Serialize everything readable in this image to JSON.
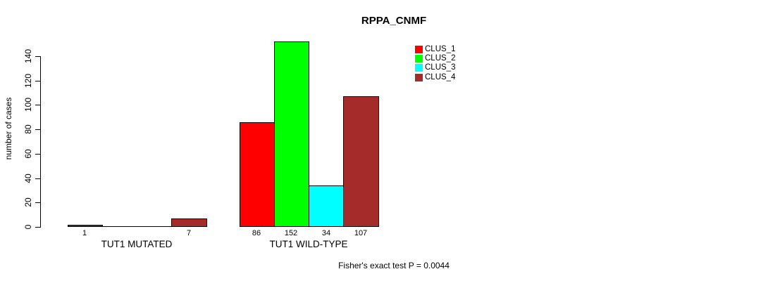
{
  "chart_data": {
    "type": "bar",
    "title": "RPPA_CNMF",
    "ylabel": "number of cases",
    "xlabel": "",
    "ylim": [
      0,
      140
    ],
    "yticks": [
      0,
      20,
      40,
      60,
      80,
      100,
      120,
      140
    ],
    "grid": false,
    "categories": [
      "TUT1 MUTATED",
      "TUT1 WILD-TYPE"
    ],
    "series": [
      {
        "name": "CLUS_1",
        "color": "#ff0000",
        "values": [
          1,
          86
        ]
      },
      {
        "name": "CLUS_2",
        "color": "#00ff00",
        "values": [
          0,
          152
        ]
      },
      {
        "name": "CLUS_3",
        "color": "#00ffff",
        "values": [
          0,
          34
        ]
      },
      {
        "name": "CLUS_4",
        "color": "#a52a2a",
        "values": [
          7,
          107
        ]
      }
    ],
    "bar_labels": [
      [
        "1",
        null,
        null,
        "7"
      ],
      [
        "86",
        "152",
        "34",
        "107"
      ]
    ],
    "legend": {
      "position": "top-right",
      "entries": [
        "CLUS_1",
        "CLUS_2",
        "CLUS_3",
        "CLUS_4"
      ]
    },
    "annotation": "Fisher's exact test P = 0.0044"
  }
}
